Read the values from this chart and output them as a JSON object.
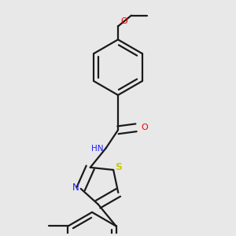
{
  "bg_color": "#e8e8e8",
  "bond_color": "#1a1a1a",
  "N_color": "#2020ff",
  "O_color": "#ee0000",
  "S_color": "#cccc00",
  "lw": 1.6,
  "dbg": 0.018,
  "xlim": [
    0.1,
    0.9
  ],
  "ylim": [
    0.02,
    0.98
  ]
}
